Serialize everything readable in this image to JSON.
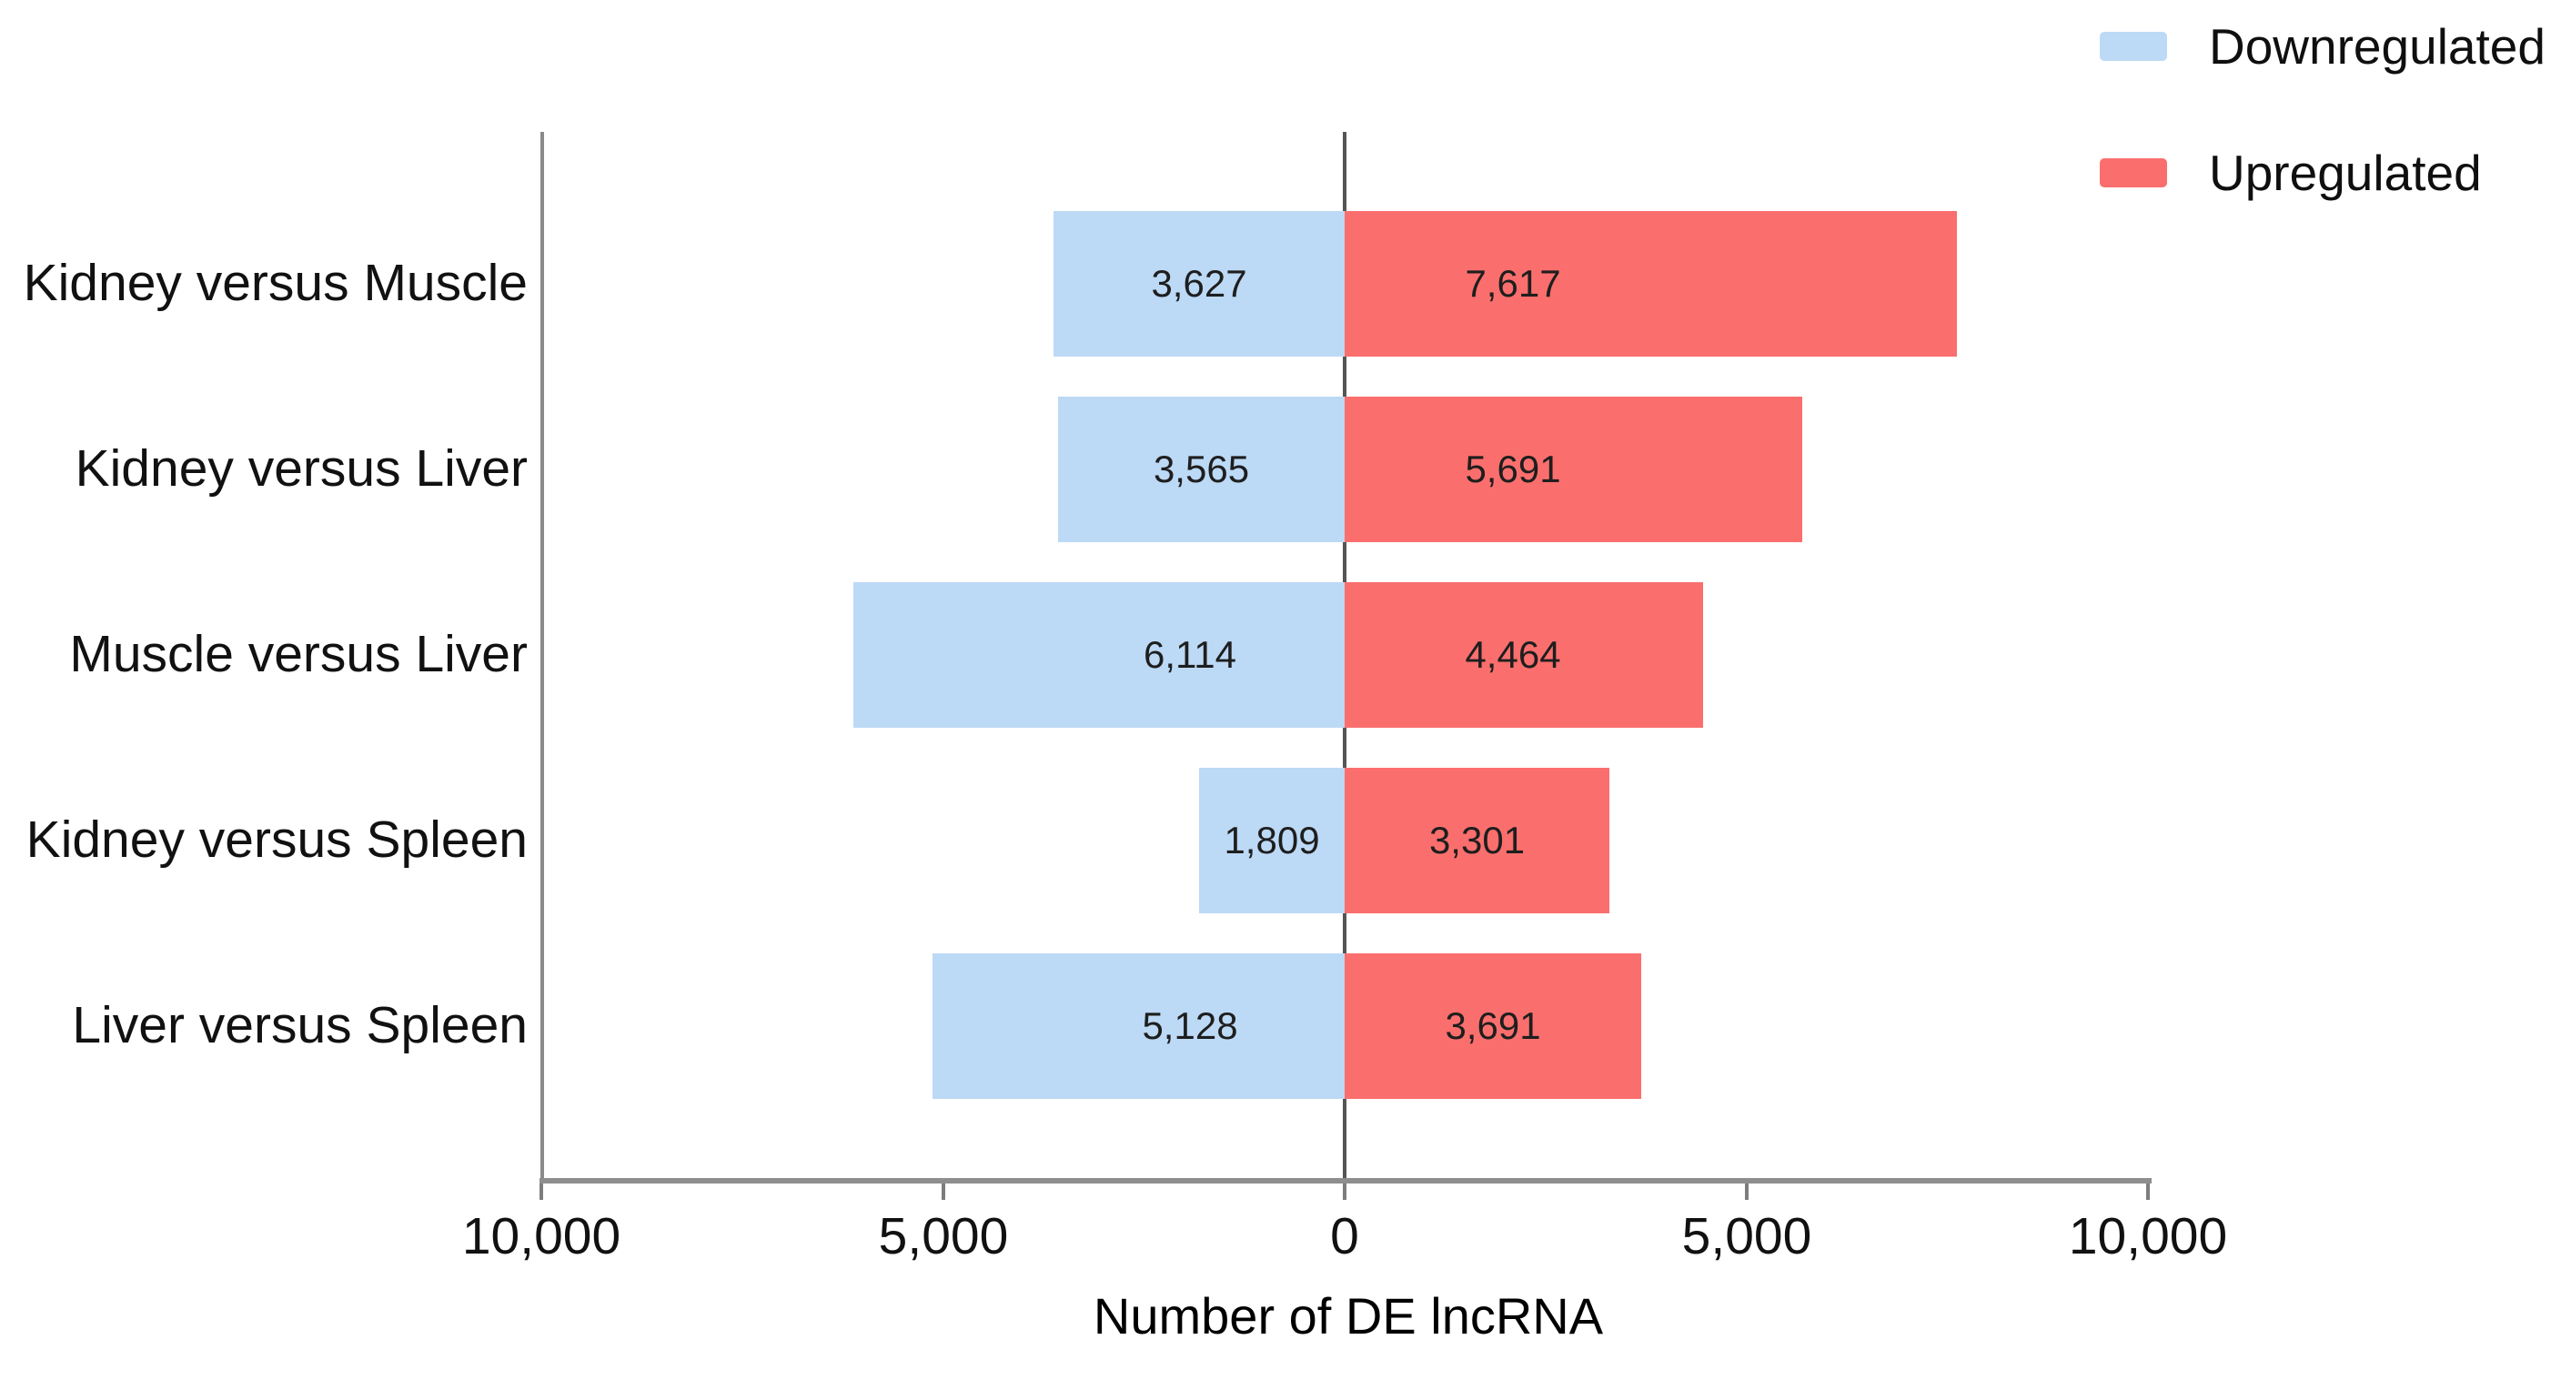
{
  "chart_data": {
    "type": "bar",
    "orientation": "horizontal-diverging",
    "title": "",
    "xlabel": "Number of DE lncRNA",
    "ylabel": "",
    "xlim": [
      -10000,
      10000
    ],
    "grid": false,
    "legend_position": "top-right",
    "categories": [
      "Kidney versus Muscle",
      "Kidney versus Liver",
      "Muscle versus Liver",
      "Kidney versus Spleen",
      "Liver versus Spleen"
    ],
    "series": [
      {
        "name": "Downregulated",
        "direction": "left",
        "color": "#BCD9F6",
        "values": [
          3627,
          3565,
          6114,
          1809,
          5128
        ],
        "labels": [
          "3,627",
          "3,565",
          "6,114",
          "1,809",
          "5,128"
        ]
      },
      {
        "name": "Upregulated",
        "direction": "right",
        "color": "#FA6F6D",
        "values": [
          7617,
          5691,
          4464,
          3301,
          3691
        ],
        "labels": [
          "7,617",
          "5,691",
          "4,464",
          "3,301",
          "3,691"
        ]
      }
    ],
    "x_ticks": [
      {
        "value": -10000,
        "label": "10,000"
      },
      {
        "value": -5000,
        "label": "5,000"
      },
      {
        "value": 0,
        "label": "0"
      },
      {
        "value": 5000,
        "label": "5,000"
      },
      {
        "value": 10000,
        "label": "10,000"
      }
    ]
  },
  "colors": {
    "downregulated": "#BCD9F6",
    "upregulated": "#FA6F6D",
    "axis_line": "#8e8e8e",
    "zero_line": "#555555",
    "text": "#111111",
    "background": "#ffffff"
  }
}
